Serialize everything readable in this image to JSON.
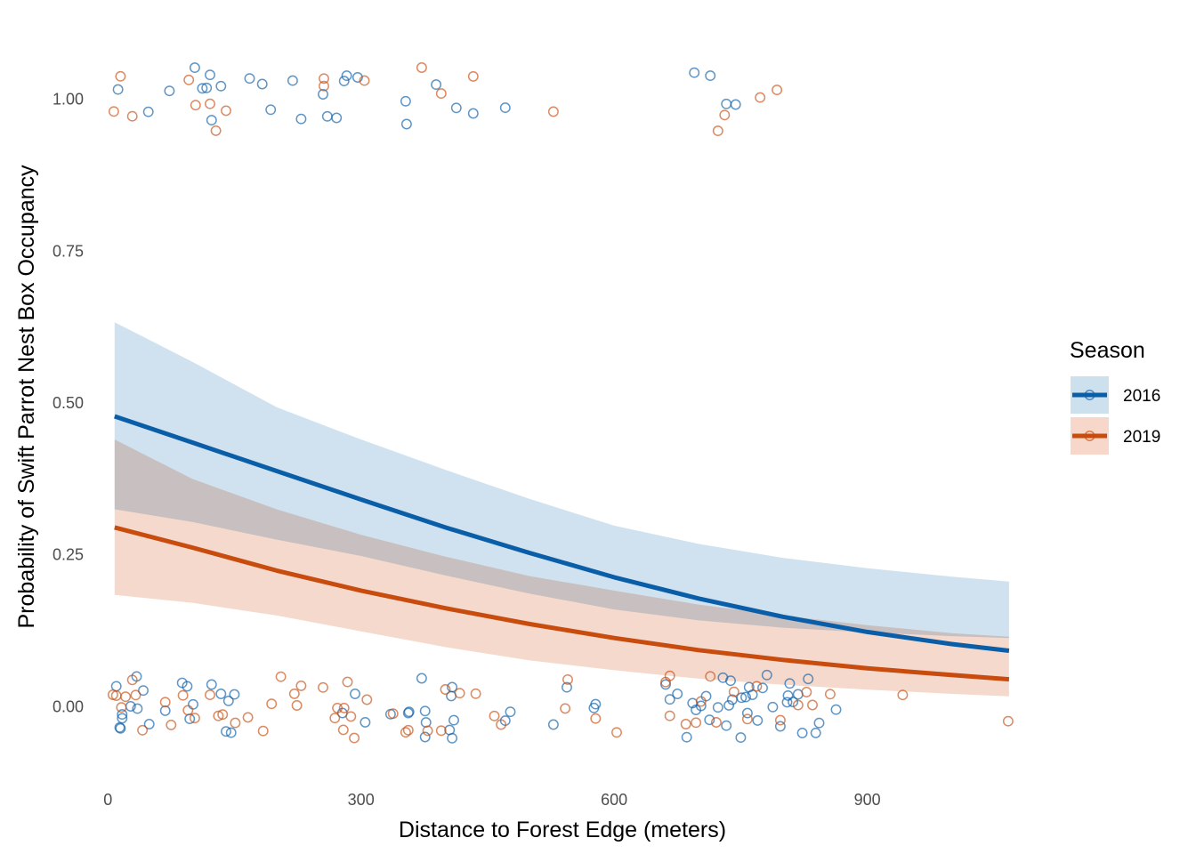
{
  "chart_data": {
    "type": "line",
    "subtype": "logistic-regression-with-confidence-band-and-jittered-points",
    "title": "",
    "xlabel": "Distance to Forest Edge (meters)",
    "ylabel": "Probability of Swift Parrot Nest Box Occupancy",
    "xlim": [
      -15,
      1085
    ],
    "ylim": [
      -0.105,
      1.105
    ],
    "x_ticks": [
      0,
      300,
      600,
      900
    ],
    "y_ticks": [
      0,
      0.25,
      0.5,
      0.75,
      1.0
    ],
    "y_tick_labels": [
      "0.00",
      "0.25",
      "0.50",
      "0.75",
      "1.00"
    ],
    "grid": false,
    "legend": {
      "title": "Season",
      "position": "right"
    },
    "series": [
      {
        "name": "2016",
        "color": "#0a5ea8",
        "band_color": "#cde0ee",
        "fit": {
          "x": [
            8,
            100,
            200,
            300,
            400,
            500,
            600,
            700,
            800,
            900,
            1000,
            1068
          ],
          "y": [
            0.478,
            0.435,
            0.388,
            0.341,
            0.295,
            0.253,
            0.213,
            0.178,
            0.148,
            0.123,
            0.103,
            0.092
          ]
        },
        "ci_lower": [
          0.325,
          0.304,
          0.275,
          0.248,
          0.216,
          0.186,
          0.16,
          0.142,
          0.13,
          0.122,
          0.116,
          0.113
        ],
        "ci_upper": [
          0.633,
          0.568,
          0.493,
          0.44,
          0.39,
          0.342,
          0.298,
          0.268,
          0.245,
          0.228,
          0.214,
          0.206
        ],
        "points_y1_x": [
          12,
          48,
          73,
          103,
          117,
          112,
          123,
          121,
          134,
          168,
          183,
          193,
          219,
          229,
          255,
          260,
          271,
          280,
          283,
          296,
          354,
          353,
          389,
          413,
          433,
          471,
          695,
          714,
          744,
          733
        ],
        "points_y0_x": [
          10,
          14,
          15,
          17,
          17,
          27,
          34,
          35,
          42,
          49,
          68,
          88,
          94,
          97,
          101,
          123,
          134,
          140,
          143,
          146,
          150,
          278,
          293,
          305,
          335,
          356,
          357,
          372,
          376,
          376,
          377,
          405,
          407,
          408,
          410,
          471,
          477,
          528,
          544,
          576,
          578,
          661,
          666,
          675,
          686,
          693,
          697,
          703,
          709,
          713,
          723,
          729,
          733,
          736,
          738,
          740,
          750,
          751,
          756,
          758,
          760,
          764,
          770,
          776,
          781,
          788,
          797,
          805,
          806,
          808,
          812,
          818,
          823,
          830,
          839,
          843,
          863,
          408
        ]
      },
      {
        "name": "2019",
        "color": "#c84c0e",
        "band_color": "#f6d7ca",
        "fit": {
          "x": [
            8,
            100,
            200,
            300,
            400,
            500,
            600,
            700,
            800,
            900,
            1000,
            1068
          ],
          "y": [
            0.295,
            0.262,
            0.224,
            0.191,
            0.162,
            0.136,
            0.113,
            0.093,
            0.077,
            0.063,
            0.052,
            0.045
          ]
        },
        "ci_lower": [
          0.184,
          0.171,
          0.15,
          0.124,
          0.098,
          0.076,
          0.06,
          0.046,
          0.036,
          0.028,
          0.021,
          0.017
        ],
        "ci_upper": [
          0.44,
          0.375,
          0.325,
          0.283,
          0.247,
          0.215,
          0.191,
          0.168,
          0.15,
          0.134,
          0.121,
          0.115
        ],
        "points_y1_x": [
          7,
          15,
          29,
          96,
          104,
          121,
          128,
          140,
          256,
          256,
          304,
          372,
          395,
          433,
          528,
          723,
          731,
          773,
          793
        ],
        "points_y0_x": [
          6,
          10,
          16,
          21,
          29,
          33,
          41,
          68,
          75,
          89,
          95,
          103,
          121,
          131,
          136,
          151,
          166,
          184,
          194,
          205,
          221,
          224,
          229,
          255,
          269,
          272,
          280,
          279,
          284,
          288,
          292,
          307,
          338,
          353,
          356,
          379,
          395,
          400,
          417,
          436,
          458,
          466,
          542,
          545,
          578,
          603,
          661,
          666,
          666,
          685,
          697,
          703,
          714,
          721,
          742,
          758,
          769,
          797,
          818,
          828,
          835,
          856,
          942,
          1067
        ]
      }
    ]
  }
}
